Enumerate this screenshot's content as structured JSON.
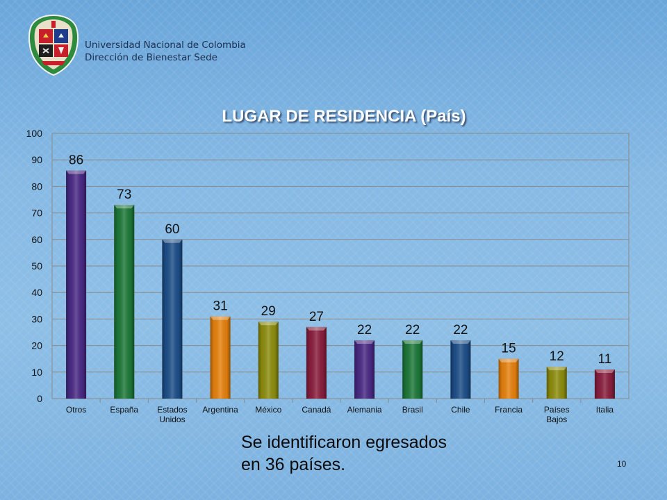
{
  "header": {
    "institution_line1": "Universidad Nacional de Colombia",
    "institution_line2": "Dirección de Bienestar Sede"
  },
  "note": {
    "line1": "Se identificaron egresados",
    "line2": "en 36 países."
  },
  "page_number": "10",
  "colors": {
    "purple": "#4a2a86",
    "green": "#1e7a3a",
    "blue": "#1d4f8a",
    "orange": "#e8820e",
    "olive": "#8e8e0e",
    "maroon": "#8a1e3e",
    "gridline": "#8a8a8a",
    "plot_border": "#8a8a8a"
  },
  "chart_data": {
    "type": "bar",
    "title": "LUGAR DE RESIDENCIA (País)",
    "xlabel": "",
    "ylabel": "",
    "categories": [
      [
        "Otros"
      ],
      [
        "España"
      ],
      [
        "Estados",
        "Unidos"
      ],
      [
        "Argentina"
      ],
      [
        "México"
      ],
      [
        "Canadá"
      ],
      [
        "Alemania"
      ],
      [
        "Brasil"
      ],
      [
        "Chile"
      ],
      [
        "Francia"
      ],
      [
        "Países",
        "Bajos"
      ],
      [
        "Italia"
      ]
    ],
    "values": [
      86,
      73,
      60,
      31,
      29,
      27,
      22,
      22,
      22,
      15,
      12,
      11
    ],
    "bar_colors": [
      "purple",
      "green",
      "blue",
      "orange",
      "olive",
      "maroon",
      "purple",
      "green",
      "blue",
      "orange",
      "olive",
      "maroon"
    ],
    "ylim": [
      0,
      100
    ],
    "yticks": [
      0,
      10,
      20,
      30,
      40,
      50,
      60,
      70,
      80,
      90,
      100
    ],
    "grid": true,
    "legend": "none",
    "data_labels": true
  }
}
